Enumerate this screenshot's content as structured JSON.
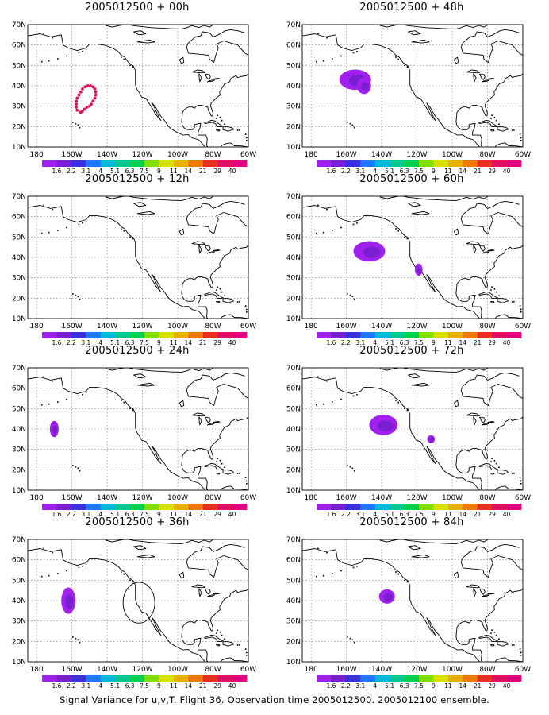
{
  "panels": [
    {
      "title": "2005012500 + 00h",
      "col": 0,
      "row": 0,
      "features": [
        {
          "kind": "dots",
          "lon": -150,
          "lat": 33
        }
      ]
    },
    {
      "title": "2005012500 + 12h",
      "col": 0,
      "row": 1,
      "features": []
    },
    {
      "title": "2005012500 + 24h",
      "col": 0,
      "row": 2,
      "features": [
        {
          "kind": "blob",
          "lon": -170,
          "lat": 40,
          "rx": 2.5,
          "ry": 4
        }
      ]
    },
    {
      "title": "2005012500 + 36h",
      "col": 0,
      "row": 3,
      "features": [
        {
          "kind": "blob",
          "lon": -162,
          "lat": 40,
          "rx": 4,
          "ry": 6.5
        },
        {
          "kind": "circle",
          "lon": -122,
          "lat": 39,
          "rx": 9,
          "ry": 10
        }
      ]
    },
    {
      "title": "2005012500 + 48h",
      "col": 1,
      "row": 0,
      "features": [
        {
          "kind": "blob",
          "lon": -155,
          "lat": 43,
          "rx": 9,
          "ry": 5
        },
        {
          "kind": "blob",
          "lon": -150,
          "lat": 40,
          "rx": 4,
          "ry": 4
        }
      ]
    },
    {
      "title": "2005012500 + 60h",
      "col": 1,
      "row": 1,
      "features": [
        {
          "kind": "blob",
          "lon": -147,
          "lat": 43,
          "rx": 9,
          "ry": 5
        },
        {
          "kind": "blob",
          "lon": -119,
          "lat": 34,
          "rx": 2.2,
          "ry": 3
        }
      ]
    },
    {
      "title": "2005012500 + 72h",
      "col": 1,
      "row": 2,
      "features": [
        {
          "kind": "blob",
          "lon": -139,
          "lat": 42,
          "rx": 8,
          "ry": 5
        },
        {
          "kind": "blob",
          "lon": -112,
          "lat": 35,
          "rx": 2.2,
          "ry": 2
        }
      ]
    },
    {
      "title": "2005012500 + 84h",
      "col": 1,
      "row": 3,
      "features": [
        {
          "kind": "blob",
          "lon": -137,
          "lat": 42,
          "rx": 4.5,
          "ry": 3.5
        }
      ]
    }
  ],
  "lon_ticks": [
    "180",
    "160W",
    "140W",
    "120W",
    "100W",
    "80W",
    "60W"
  ],
  "lat_ticks": [
    "10N",
    "20N",
    "30N",
    "40N",
    "50N",
    "60N",
    "70N"
  ],
  "lon_range": [
    -185,
    -60
  ],
  "lat_range": [
    10,
    70
  ],
  "colorbar": {
    "labels": [
      "1.6",
      "2.2",
      "3.1",
      "4",
      "5.1",
      "6.3",
      "7.5",
      "9",
      "11",
      "14",
      "21",
      "29",
      "40"
    ],
    "colors": [
      "#a020f0",
      "#7a1fd0",
      "#3a30e0",
      "#1f78ff",
      "#00b8d8",
      "#00c890",
      "#00d050",
      "#80e000",
      "#d8e000",
      "#e8b000",
      "#f07800",
      "#e83020",
      "#e01060",
      "#e00080"
    ]
  },
  "caption": "Signal Variance for u,v,T. Flight 36. Observation time 2005012500. 2005012100 ensemble."
}
